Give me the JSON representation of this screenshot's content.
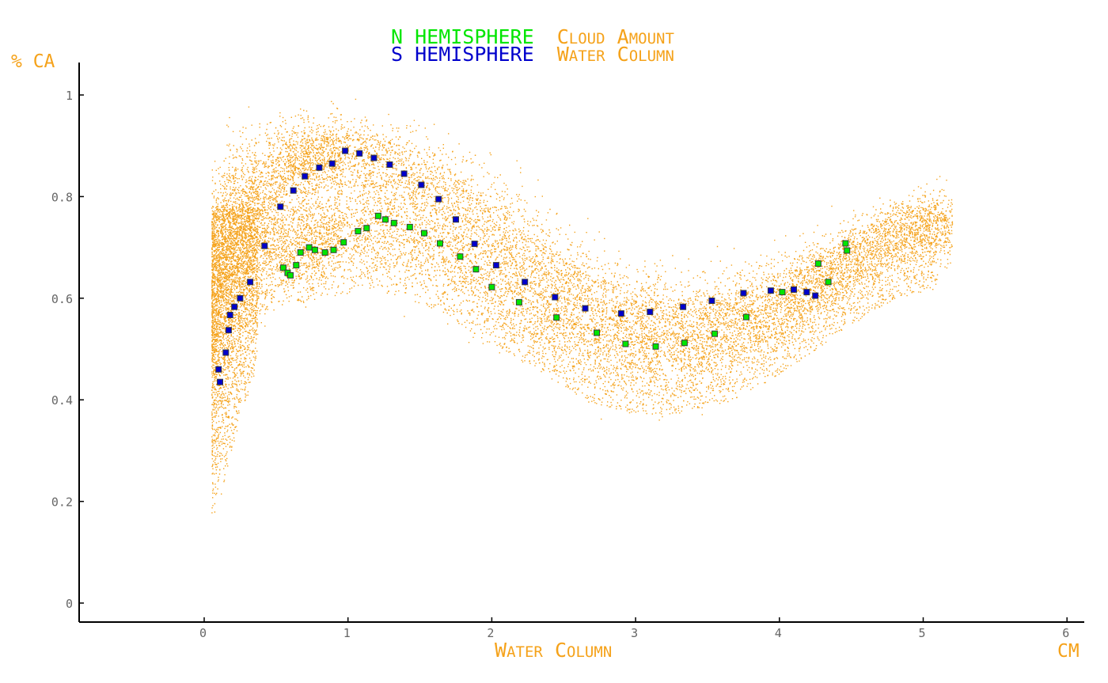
{
  "colors": {
    "north": "#00e600",
    "south": "#0000cc",
    "accent": "#f5a21a",
    "axis": "#000000",
    "ticks": "#666666",
    "point_outline": "#3c3c3c"
  },
  "title_lines": [
    {
      "series_label": "N HEMISPHERE",
      "description": "Cloud Amount"
    },
    {
      "series_label": "S HEMISPHERE",
      "description": "Water Column"
    }
  ],
  "chart_data": {
    "type": "scatter",
    "xlabel": "Water Column",
    "ylabel": "% CA",
    "xunit": "cm",
    "xlim": [
      -0.87,
      6.1
    ],
    "ylim": [
      -0.04,
      1.06
    ],
    "xticks": [
      0,
      1,
      2,
      3,
      4,
      5,
      6
    ],
    "yticks": [
      0,
      0.2,
      0.4,
      0.6,
      0.8,
      1
    ],
    "xtick_labels": [
      "0",
      "1",
      "2",
      "3",
      "4",
      "5",
      "6"
    ],
    "ytick_labels": [
      "0",
      "0.2",
      "0.4",
      "0.6",
      "0.8",
      "1"
    ],
    "grid": false,
    "legend": "top-center",
    "series": [
      {
        "name": "N HEMISPHERE",
        "color_key": "north",
        "x": [
          0.55,
          0.58,
          0.6,
          0.64,
          0.67,
          0.73,
          0.77,
          0.84,
          0.9,
          0.97,
          1.07,
          1.13,
          1.21,
          1.26,
          1.32,
          1.43,
          1.53,
          1.64,
          1.78,
          1.89,
          2.0,
          2.19,
          2.45,
          2.73,
          2.93,
          3.14,
          3.34,
          3.55,
          3.77,
          4.02,
          4.27,
          4.34,
          4.46,
          4.47
        ],
        "y": [
          0.66,
          0.65,
          0.645,
          0.665,
          0.69,
          0.7,
          0.695,
          0.69,
          0.695,
          0.71,
          0.732,
          0.738,
          0.762,
          0.755,
          0.748,
          0.74,
          0.728,
          0.708,
          0.682,
          0.657,
          0.622,
          0.592,
          0.562,
          0.532,
          0.51,
          0.505,
          0.512,
          0.53,
          0.563,
          0.612,
          0.668,
          0.632,
          0.708,
          0.694
        ]
      },
      {
        "name": "S HEMISPHERE",
        "color_key": "south",
        "x": [
          0.1,
          0.11,
          0.15,
          0.17,
          0.18,
          0.21,
          0.25,
          0.32,
          0.42,
          0.53,
          0.62,
          0.7,
          0.8,
          0.89,
          0.98,
          1.08,
          1.18,
          1.29,
          1.39,
          1.51,
          1.63,
          1.75,
          1.88,
          2.03,
          2.23,
          2.44,
          2.65,
          2.9,
          3.1,
          3.33,
          3.53,
          3.75,
          3.94,
          4.1,
          4.19,
          4.25
        ],
        "y": [
          0.46,
          0.435,
          0.493,
          0.537,
          0.567,
          0.583,
          0.6,
          0.632,
          0.703,
          0.78,
          0.812,
          0.84,
          0.857,
          0.865,
          0.89,
          0.885,
          0.876,
          0.863,
          0.845,
          0.823,
          0.795,
          0.755,
          0.707,
          0.665,
          0.632,
          0.602,
          0.58,
          0.57,
          0.573,
          0.583,
          0.595,
          0.61,
          0.615,
          0.617,
          0.612,
          0.605
        ]
      }
    ],
    "background_cloud": {
      "color_key": "accent",
      "description_ranges": [
        {
          "x": [
            0.05,
            0.6
          ],
          "y": [
            0.08,
            0.85
          ]
        },
        {
          "x": [
            0.6,
            2.2
          ],
          "y": [
            0.42,
            0.93
          ]
        },
        {
          "x": [
            2.2,
            4.0
          ],
          "y": [
            0.37,
            0.73
          ]
        },
        {
          "x": [
            4.0,
            5.2
          ],
          "y": [
            0.47,
            0.8
          ]
        }
      ]
    }
  }
}
